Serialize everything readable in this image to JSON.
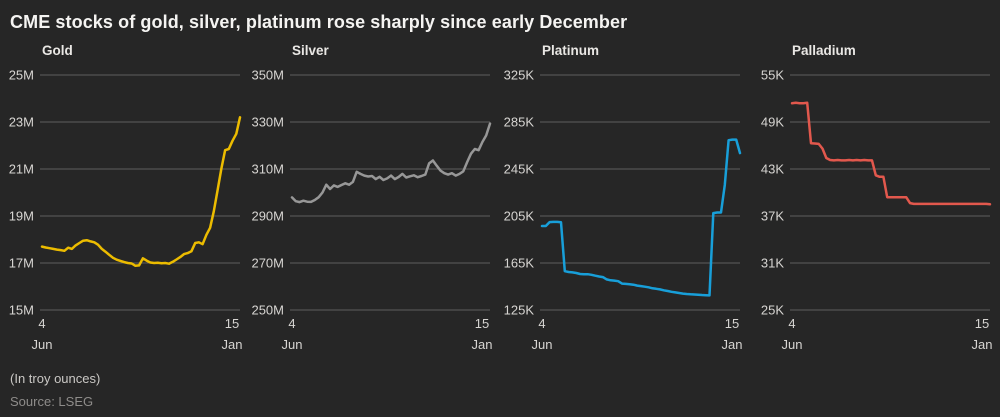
{
  "title": "CME stocks of gold, silver, platinum rose sharply since early December",
  "footer": {
    "note": "(In troy ounces)",
    "source": "Source: LSEG"
  },
  "colors": {
    "background": "#262626",
    "grid": "#5e5e5e",
    "tick": "#d7d5d2",
    "title": "#f5f4f2",
    "panel_title": "#e9e7e4",
    "note": "#cac8c5",
    "source": "#8e8c8a",
    "gold": "#ecbc00",
    "silver": "#979797",
    "platinum": "#189fd9",
    "palladium": "#e2584d"
  },
  "chart_data": [
    {
      "type": "line",
      "title": "Gold",
      "color": "#ecbc00",
      "unit": "troy ounces (millions)",
      "ylim": [
        15,
        25
      ],
      "yticks": [
        25,
        23,
        21,
        19,
        17,
        15
      ],
      "ytick_labels": [
        "25M",
        "23M",
        "21M",
        "19M",
        "17M",
        "15M"
      ],
      "xtick_labels": [
        [
          "4",
          "Jun"
        ],
        [
          "15",
          "Jan"
        ]
      ],
      "grid": true,
      "legend": "none",
      "values": [
        17.7,
        17.66,
        17.63,
        17.6,
        17.57,
        17.55,
        17.52,
        17.65,
        17.6,
        17.75,
        17.85,
        17.95,
        17.97,
        17.92,
        17.88,
        17.78,
        17.6,
        17.48,
        17.35,
        17.22,
        17.14,
        17.09,
        17.04,
        17.0,
        16.98,
        16.88,
        16.9,
        17.2,
        17.1,
        17.02,
        17.0,
        17.01,
        16.99,
        17.0,
        16.97,
        17.05,
        17.15,
        17.25,
        17.38,
        17.42,
        17.5,
        17.85,
        17.88,
        17.8,
        18.2,
        18.5,
        19.2,
        20.1,
        21.0,
        21.8,
        21.85,
        22.2,
        22.5,
        23.2
      ]
    },
    {
      "type": "line",
      "title": "Silver",
      "color": "#979797",
      "unit": "troy ounces (millions)",
      "ylim": [
        250,
        350
      ],
      "yticks": [
        350,
        330,
        310,
        290,
        270,
        250
      ],
      "ytick_labels": [
        "350M",
        "330M",
        "310M",
        "290M",
        "270M",
        "250M"
      ],
      "xtick_labels": [
        [
          "4",
          "Jun"
        ],
        [
          "15",
          "Jan"
        ]
      ],
      "grid": true,
      "legend": "none",
      "values": [
        297.9,
        296.3,
        295.9,
        296.5,
        296.1,
        296.0,
        296.8,
        298.0,
        300.0,
        303.3,
        301.5,
        303.0,
        302.4,
        303.2,
        303.9,
        303.3,
        304.5,
        308.8,
        307.9,
        307.2,
        306.8,
        307.0,
        305.7,
        306.7,
        305.3,
        306.0,
        307.2,
        305.7,
        306.6,
        307.9,
        306.4,
        306.9,
        307.3,
        306.5,
        307.0,
        307.6,
        312.4,
        313.6,
        311.4,
        309.3,
        308.2,
        307.6,
        308.2,
        307.2,
        307.9,
        309.0,
        313.0,
        316.5,
        318.5,
        318.0,
        321.5,
        324.3,
        329.3
      ]
    },
    {
      "type": "line",
      "title": "Platinum",
      "color": "#189fd9",
      "unit": "troy ounces (thousands)",
      "ylim": [
        125,
        325
      ],
      "yticks": [
        325,
        285,
        245,
        205,
        165,
        125
      ],
      "ytick_labels": [
        "325K",
        "285K",
        "245K",
        "205K",
        "165K",
        "125K"
      ],
      "xtick_labels": [
        [
          "4",
          "Jun"
        ],
        [
          "15",
          "Jan"
        ]
      ],
      "grid": true,
      "legend": "none",
      "values": [
        196.5,
        196.5,
        199.8,
        200.0,
        200.0,
        199.6,
        158.0,
        157.3,
        157.0,
        156.5,
        155.6,
        155.5,
        155.5,
        155.0,
        154.2,
        153.5,
        153.0,
        151.0,
        150.3,
        150.0,
        149.5,
        147.5,
        147.2,
        147.0,
        146.5,
        145.8,
        145.3,
        144.8,
        144.3,
        143.5,
        143.0,
        142.5,
        141.8,
        141.2,
        140.5,
        140.0,
        139.5,
        139.0,
        138.6,
        138.4,
        138.2,
        138.0,
        137.8,
        137.6,
        137.4,
        207.5,
        208.0,
        208.0,
        231.5,
        269.5,
        270.0,
        270.0,
        258.5
      ]
    },
    {
      "type": "line",
      "title": "Palladium",
      "color": "#e2584d",
      "unit": "troy ounces (thousands)",
      "ylim": [
        25,
        55
      ],
      "yticks": [
        55,
        49,
        43,
        37,
        31,
        25
      ],
      "ytick_labels": [
        "55K",
        "49K",
        "43K",
        "37K",
        "31K",
        "25K"
      ],
      "xtick_labels": [
        [
          "4",
          "Jun"
        ],
        [
          "15",
          "Jan"
        ]
      ],
      "grid": true,
      "legend": "none",
      "values": [
        51.4,
        51.45,
        51.4,
        51.4,
        51.45,
        46.3,
        46.25,
        46.2,
        45.6,
        44.4,
        44.15,
        44.1,
        44.15,
        44.1,
        44.1,
        44.15,
        44.1,
        44.15,
        44.1,
        44.15,
        44.1,
        44.1,
        42.2,
        42.0,
        42.0,
        39.4,
        39.4,
        39.4,
        39.4,
        39.4,
        39.4,
        38.65,
        38.55,
        38.55,
        38.55,
        38.55,
        38.55,
        38.55,
        38.55,
        38.55,
        38.55,
        38.55,
        38.55,
        38.55,
        38.55,
        38.55,
        38.55,
        38.55,
        38.55,
        38.55,
        38.55,
        38.55,
        38.5
      ]
    }
  ]
}
